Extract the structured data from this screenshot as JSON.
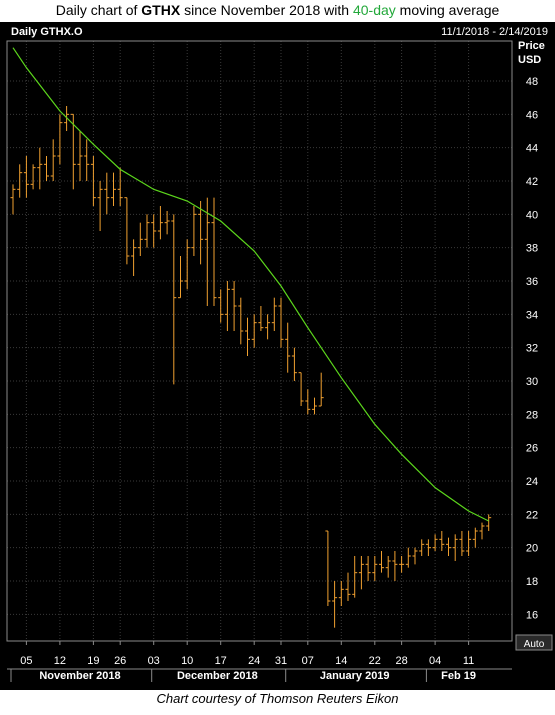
{
  "caption": {
    "prefix": "Daily chart of ",
    "ticker": "GTHX",
    "middle": " since November 2018 with ",
    "ma": "40-day",
    "suffix": " moving average"
  },
  "footer": "Chart courtesy of Thomson Reuters Eikon",
  "chart_header": {
    "title": "Daily GTHX.O",
    "range": "11/1/2018 - 2/14/2019",
    "price_label": "Price",
    "currency_label": "USD",
    "auto_label": "Auto"
  },
  "colors": {
    "background": "#000000",
    "bars": "#f0a030",
    "moving_average": "#5cd61c",
    "axis_text": "#ffffff",
    "grid": "#3a3a3a",
    "frame": "#8a8a8a"
  },
  "chart_data": {
    "type": "ohlc",
    "title": "Daily GTHX.O",
    "ylabel": "Price USD",
    "ylim": [
      14.4,
      50.4
    ],
    "y_ticks": [
      16,
      18,
      20,
      22,
      24,
      26,
      28,
      30,
      32,
      34,
      36,
      38,
      40,
      42,
      44,
      46,
      48
    ],
    "grid": true,
    "x_ticks": [
      "05",
      "12",
      "19",
      "26",
      "03",
      "10",
      "17",
      "24",
      "31",
      "07",
      "14",
      "22",
      "28",
      "04",
      "11"
    ],
    "x_tick_dates": [
      "2018-11-05",
      "2018-11-12",
      "2018-11-19",
      "2018-11-26",
      "2018-12-03",
      "2018-12-10",
      "2018-12-17",
      "2018-12-24",
      "2018-12-31",
      "2019-01-07",
      "2019-01-14",
      "2019-01-22",
      "2019-01-28",
      "2019-02-04",
      "2019-02-11"
    ],
    "months": [
      {
        "label": "November 2018",
        "from": "2018-11-01",
        "to": "2018-11-30"
      },
      {
        "label": "December 2018",
        "from": "2018-12-03",
        "to": "2018-12-31"
      },
      {
        "label": "January 2019",
        "from": "2019-01-02",
        "to": "2019-01-31"
      },
      {
        "label": "Feb 19",
        "from": "2019-02-01",
        "to": "2019-02-14"
      }
    ],
    "ohlc": [
      {
        "date": "2018-11-01",
        "open": 41.0,
        "high": 41.8,
        "low": 40.0,
        "close": 41.5
      },
      {
        "date": "2018-11-02",
        "open": 41.5,
        "high": 43.0,
        "low": 41.0,
        "close": 42.5
      },
      {
        "date": "2018-11-05",
        "open": 42.5,
        "high": 43.5,
        "low": 41.0,
        "close": 41.8
      },
      {
        "date": "2018-11-06",
        "open": 41.8,
        "high": 43.0,
        "low": 41.5,
        "close": 42.8
      },
      {
        "date": "2018-11-07",
        "open": 42.8,
        "high": 44.0,
        "low": 41.5,
        "close": 43.0
      },
      {
        "date": "2018-11-08",
        "open": 43.0,
        "high": 43.5,
        "low": 42.0,
        "close": 42.3
      },
      {
        "date": "2018-11-09",
        "open": 42.3,
        "high": 44.5,
        "low": 42.0,
        "close": 43.5
      },
      {
        "date": "2018-11-12",
        "open": 43.5,
        "high": 46.0,
        "low": 43.0,
        "close": 45.5
      },
      {
        "date": "2018-11-13",
        "open": 45.5,
        "high": 46.5,
        "low": 45.0,
        "close": 46.0
      },
      {
        "date": "2018-11-14",
        "open": 46.0,
        "high": 46.0,
        "low": 41.5,
        "close": 43.0
      },
      {
        "date": "2018-11-15",
        "open": 43.0,
        "high": 45.0,
        "low": 42.0,
        "close": 43.5
      },
      {
        "date": "2018-11-16",
        "open": 43.5,
        "high": 44.5,
        "low": 42.0,
        "close": 43.0
      },
      {
        "date": "2018-11-19",
        "open": 43.0,
        "high": 43.5,
        "low": 40.5,
        "close": 41.0
      },
      {
        "date": "2018-11-20",
        "open": 41.0,
        "high": 42.0,
        "low": 39.0,
        "close": 41.5
      },
      {
        "date": "2018-11-21",
        "open": 41.5,
        "high": 42.5,
        "low": 40.0,
        "close": 41.0
      },
      {
        "date": "2018-11-23",
        "open": 41.0,
        "high": 42.5,
        "low": 40.5,
        "close": 41.5
      },
      {
        "date": "2018-11-26",
        "open": 41.5,
        "high": 42.8,
        "low": 40.5,
        "close": 41.0
      },
      {
        "date": "2018-11-27",
        "open": 41.0,
        "high": 41.0,
        "low": 37.0,
        "close": 37.5
      },
      {
        "date": "2018-11-28",
        "open": 37.5,
        "high": 38.5,
        "low": 36.3,
        "close": 38.0
      },
      {
        "date": "2018-11-29",
        "open": 38.0,
        "high": 39.5,
        "low": 37.5,
        "close": 38.5
      },
      {
        "date": "2018-11-30",
        "open": 38.5,
        "high": 40.0,
        "low": 38.0,
        "close": 39.5
      },
      {
        "date": "2018-12-03",
        "open": 39.5,
        "high": 40.0,
        "low": 38.0,
        "close": 39.0
      },
      {
        "date": "2018-12-04",
        "open": 39.0,
        "high": 40.5,
        "low": 38.5,
        "close": 39.5
      },
      {
        "date": "2018-12-05",
        "open": 39.5,
        "high": 40.2,
        "low": 38.8,
        "close": 39.6
      },
      {
        "date": "2018-12-06",
        "open": 39.6,
        "high": 40.0,
        "low": 29.8,
        "close": 35.0
      },
      {
        "date": "2018-12-07",
        "open": 35.0,
        "high": 37.5,
        "low": 35.0,
        "close": 36.0
      },
      {
        "date": "2018-12-10",
        "open": 36.0,
        "high": 38.5,
        "low": 35.5,
        "close": 38.0
      },
      {
        "date": "2018-12-11",
        "open": 38.0,
        "high": 40.5,
        "low": 37.5,
        "close": 40.0
      },
      {
        "date": "2018-12-12",
        "open": 40.0,
        "high": 40.8,
        "low": 37.0,
        "close": 38.5
      },
      {
        "date": "2018-12-13",
        "open": 38.5,
        "high": 41.0,
        "low": 34.5,
        "close": 39.5
      },
      {
        "date": "2018-12-14",
        "open": 39.5,
        "high": 41.0,
        "low": 34.5,
        "close": 35.0
      },
      {
        "date": "2018-12-17",
        "open": 35.0,
        "high": 35.5,
        "low": 33.5,
        "close": 34.0
      },
      {
        "date": "2018-12-18",
        "open": 34.0,
        "high": 36.0,
        "low": 33.0,
        "close": 35.5
      },
      {
        "date": "2018-12-19",
        "open": 35.5,
        "high": 36.0,
        "low": 33.0,
        "close": 34.5
      },
      {
        "date": "2018-12-20",
        "open": 34.5,
        "high": 35.0,
        "low": 32.2,
        "close": 33.0
      },
      {
        "date": "2018-12-21",
        "open": 33.0,
        "high": 33.8,
        "low": 31.5,
        "close": 32.5
      },
      {
        "date": "2018-12-24",
        "open": 32.5,
        "high": 34.0,
        "low": 32.0,
        "close": 33.5
      },
      {
        "date": "2018-12-26",
        "open": 33.5,
        "high": 34.5,
        "low": 33.0,
        "close": 33.2
      },
      {
        "date": "2018-12-27",
        "open": 33.2,
        "high": 34.0,
        "low": 32.5,
        "close": 33.5
      },
      {
        "date": "2018-12-28",
        "open": 33.5,
        "high": 35.0,
        "low": 33.0,
        "close": 34.5
      },
      {
        "date": "2018-12-31",
        "open": 34.5,
        "high": 35.0,
        "low": 32.0,
        "close": 32.5
      },
      {
        "date": "2019-01-02",
        "open": 32.5,
        "high": 33.5,
        "low": 30.5,
        "close": 31.5
      },
      {
        "date": "2019-01-03",
        "open": 31.5,
        "high": 32.0,
        "low": 30.0,
        "close": 30.5
      },
      {
        "date": "2019-01-04",
        "open": 30.5,
        "high": 30.5,
        "low": 28.5,
        "close": 28.8
      },
      {
        "date": "2019-01-07",
        "open": 28.8,
        "high": 29.5,
        "low": 28.0,
        "close": 28.3
      },
      {
        "date": "2019-01-08",
        "open": 28.3,
        "high": 29.0,
        "low": 28.0,
        "close": 28.5
      },
      {
        "date": "2019-01-09",
        "open": 28.5,
        "high": 30.5,
        "low": 28.5,
        "close": 29.0
      },
      {
        "date": "2019-01-10",
        "open": 21.0,
        "high": 21.0,
        "low": 16.5,
        "close": 16.8
      },
      {
        "date": "2019-01-11",
        "open": 16.8,
        "high": 18.0,
        "low": 15.2,
        "close": 17.0
      },
      {
        "date": "2019-01-14",
        "open": 17.0,
        "high": 18.0,
        "low": 16.5,
        "close": 17.5
      },
      {
        "date": "2019-01-15",
        "open": 17.5,
        "high": 18.5,
        "low": 16.8,
        "close": 17.2
      },
      {
        "date": "2019-01-16",
        "open": 17.2,
        "high": 19.5,
        "low": 17.0,
        "close": 18.5
      },
      {
        "date": "2019-01-17",
        "open": 18.5,
        "high": 19.5,
        "low": 17.5,
        "close": 19.0
      },
      {
        "date": "2019-01-18",
        "open": 19.0,
        "high": 19.5,
        "low": 18.0,
        "close": 18.5
      },
      {
        "date": "2019-01-22",
        "open": 18.5,
        "high": 19.5,
        "low": 18.0,
        "close": 19.0
      },
      {
        "date": "2019-01-23",
        "open": 19.0,
        "high": 19.8,
        "low": 18.5,
        "close": 18.8
      },
      {
        "date": "2019-01-24",
        "open": 18.8,
        "high": 19.5,
        "low": 18.2,
        "close": 19.2
      },
      {
        "date": "2019-01-25",
        "open": 19.2,
        "high": 19.8,
        "low": 18.0,
        "close": 19.0
      },
      {
        "date": "2019-01-28",
        "open": 19.0,
        "high": 19.5,
        "low": 18.5,
        "close": 19.0
      },
      {
        "date": "2019-01-29",
        "open": 19.0,
        "high": 20.0,
        "low": 18.8,
        "close": 19.5
      },
      {
        "date": "2019-01-30",
        "open": 19.5,
        "high": 20.0,
        "low": 19.0,
        "close": 19.8
      },
      {
        "date": "2019-01-31",
        "open": 19.8,
        "high": 20.5,
        "low": 19.5,
        "close": 20.2
      },
      {
        "date": "2019-02-01",
        "open": 20.2,
        "high": 20.5,
        "low": 19.5,
        "close": 20.0
      },
      {
        "date": "2019-02-04",
        "open": 20.0,
        "high": 20.8,
        "low": 19.8,
        "close": 20.5
      },
      {
        "date": "2019-02-05",
        "open": 20.5,
        "high": 21.0,
        "low": 19.8,
        "close": 20.2
      },
      {
        "date": "2019-02-06",
        "open": 20.2,
        "high": 20.6,
        "low": 19.5,
        "close": 20.0
      },
      {
        "date": "2019-02-07",
        "open": 20.0,
        "high": 20.8,
        "low": 19.2,
        "close": 20.5
      },
      {
        "date": "2019-02-08",
        "open": 20.5,
        "high": 21.0,
        "low": 19.5,
        "close": 19.8
      },
      {
        "date": "2019-02-11",
        "open": 19.8,
        "high": 21.0,
        "low": 19.5,
        "close": 20.5
      },
      {
        "date": "2019-02-12",
        "open": 20.5,
        "high": 21.2,
        "low": 20.0,
        "close": 21.0
      },
      {
        "date": "2019-02-13",
        "open": 21.0,
        "high": 21.5,
        "low": 20.5,
        "close": 21.3
      },
      {
        "date": "2019-02-14",
        "open": 21.3,
        "high": 22.0,
        "low": 21.0,
        "close": 21.8
      }
    ],
    "moving_average": {
      "name": "40-day",
      "points": [
        {
          "date": "2018-11-01",
          "value": 50.0
        },
        {
          "date": "2018-11-05",
          "value": 48.8
        },
        {
          "date": "2018-11-12",
          "value": 46.2
        },
        {
          "date": "2018-11-19",
          "value": 44.2
        },
        {
          "date": "2018-11-26",
          "value": 42.7
        },
        {
          "date": "2018-12-03",
          "value": 41.5
        },
        {
          "date": "2018-12-10",
          "value": 40.8
        },
        {
          "date": "2018-12-17",
          "value": 39.6
        },
        {
          "date": "2018-12-24",
          "value": 37.8
        },
        {
          "date": "2018-12-31",
          "value": 35.7
        },
        {
          "date": "2019-01-07",
          "value": 33.2
        },
        {
          "date": "2019-01-14",
          "value": 30.2
        },
        {
          "date": "2019-01-22",
          "value": 27.4
        },
        {
          "date": "2019-01-28",
          "value": 25.6
        },
        {
          "date": "2019-02-04",
          "value": 23.6
        },
        {
          "date": "2019-02-11",
          "value": 22.2
        },
        {
          "date": "2019-02-14",
          "value": 21.6
        }
      ]
    }
  }
}
